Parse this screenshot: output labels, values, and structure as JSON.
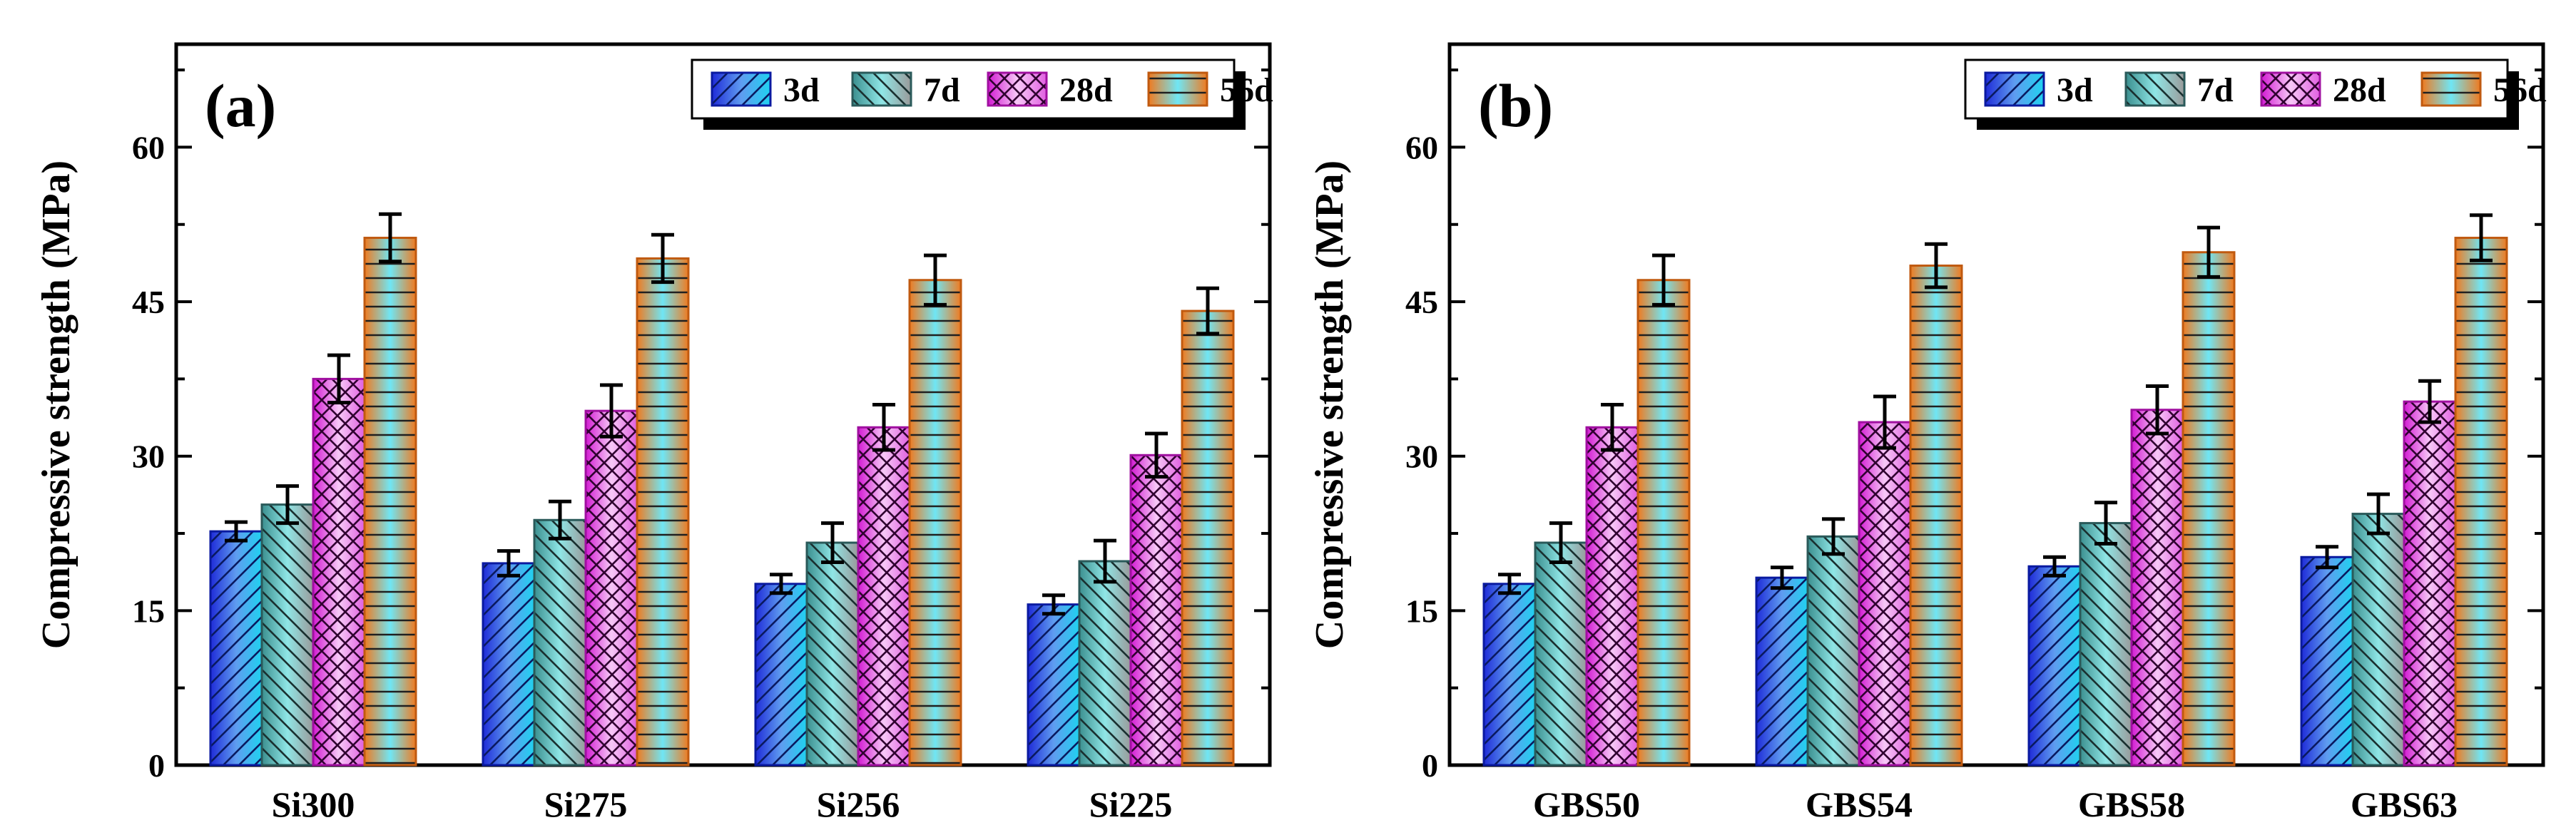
{
  "series_names": [
    "3d",
    "7d",
    "28d",
    "56d"
  ],
  "series_styles": [
    {
      "name": "3d",
      "grad_from": "#1f2bd8",
      "grad_mid": "#5f9cf0",
      "grad_to": "#1fd2f0",
      "edge": "#0a1aa0",
      "hatch": "#0a1a60",
      "pattern": "diag-right"
    },
    {
      "name": "7d",
      "grad_from": "#3b8f8f",
      "grad_mid": "#8fe6e6",
      "grad_to": "#9a9a9a",
      "edge": "#2a5a5a",
      "hatch": "#1a3030",
      "pattern": "diag-left"
    },
    {
      "name": "28d",
      "grad_from": "#d21bd2",
      "grad_mid": "#f7c8f7",
      "grad_to": "#e060e0",
      "edge": "#a010a0",
      "hatch": "#300030",
      "pattern": "cross"
    },
    {
      "name": "56d",
      "grad_from": "#f07a1f",
      "grad_mid": "#6fe6f5",
      "grad_to": "#f07a1f",
      "edge": "#c05a10",
      "hatch": "#202020",
      "pattern": "horizontal"
    }
  ],
  "chart_data": [
    {
      "type": "bar",
      "panel_label": "(a)",
      "ylabel": "Compressive strength (MPa)",
      "ylim": [
        0,
        70
      ],
      "yticks": [
        0,
        15,
        30,
        45,
        60
      ],
      "categories": [
        "Si300",
        "Si275",
        "Si256",
        "Si225"
      ],
      "legend_position": "top-right",
      "series": [
        {
          "name": "3d",
          "values": [
            22.7,
            19.6,
            17.6,
            15.6
          ],
          "errors": [
            0.9,
            1.2,
            0.9,
            0.9
          ]
        },
        {
          "name": "7d",
          "values": [
            25.3,
            23.8,
            21.6,
            19.8
          ],
          "errors": [
            1.8,
            1.8,
            1.9,
            2.0
          ]
        },
        {
          "name": "28d",
          "values": [
            37.5,
            34.4,
            32.8,
            30.1
          ],
          "errors": [
            2.3,
            2.5,
            2.2,
            2.1
          ]
        },
        {
          "name": "56d",
          "values": [
            51.2,
            49.2,
            47.1,
            44.1
          ],
          "errors": [
            2.3,
            2.3,
            2.4,
            2.2
          ]
        }
      ]
    },
    {
      "type": "bar",
      "panel_label": "(b)",
      "ylabel": "Compressive strength (MPa)",
      "ylim": [
        0,
        70
      ],
      "yticks": [
        0,
        15,
        30,
        45,
        60
      ],
      "categories": [
        "GBS50",
        "GBS54",
        "GBS58",
        "GBS63"
      ],
      "legend_position": "top-right",
      "series": [
        {
          "name": "3d",
          "values": [
            17.6,
            18.2,
            19.3,
            20.2
          ],
          "errors": [
            0.9,
            1.0,
            0.9,
            1.0
          ]
        },
        {
          "name": "7d",
          "values": [
            21.6,
            22.2,
            23.5,
            24.4
          ],
          "errors": [
            1.9,
            1.7,
            2.0,
            1.9
          ]
        },
        {
          "name": "28d",
          "values": [
            32.8,
            33.3,
            34.5,
            35.3
          ],
          "errors": [
            2.2,
            2.5,
            2.3,
            2.0
          ]
        },
        {
          "name": "56d",
          "values": [
            47.1,
            48.5,
            49.8,
            51.2
          ],
          "errors": [
            2.4,
            2.1,
            2.4,
            2.2
          ]
        }
      ]
    }
  ]
}
